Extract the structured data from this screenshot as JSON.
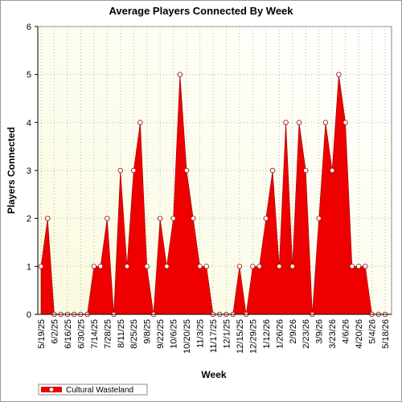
{
  "chart_data": {
    "type": "area",
    "title": "Average Players Connected By Week",
    "x_label": "Week",
    "y_label": "Players Connected",
    "categories": [
      "5/19/25",
      null,
      "6/2/25",
      null,
      "6/16/25",
      null,
      "6/30/25",
      null,
      "7/14/25",
      null,
      "7/28/25",
      null,
      "8/11/25",
      null,
      "8/25/25",
      null,
      "9/8/25",
      null,
      "9/22/25",
      null,
      "10/6/25",
      null,
      "10/20/25",
      null,
      "11/3/25",
      null,
      "11/17/25",
      null,
      "12/1/25",
      null,
      "12/15/25",
      null,
      "12/29/25",
      null,
      "1/12/26",
      null,
      "1/26/26",
      null,
      "2/9/26",
      null,
      "2/23/26",
      null,
      "3/9/26",
      null,
      "3/23/26",
      null,
      "4/6/26",
      null,
      "4/20/26",
      null,
      "5/4/26",
      null,
      "5/18/26"
    ],
    "series": [
      {
        "name": "Cultural Wasteland",
        "color": "#ee0000",
        "values": [
          1,
          2,
          0,
          0,
          0,
          0,
          0,
          0,
          1,
          1,
          2,
          0,
          3,
          1,
          3,
          4,
          1,
          0,
          2,
          1,
          2,
          5,
          3,
          2,
          1,
          1,
          0,
          0,
          0,
          0,
          1,
          0,
          1,
          1,
          2,
          3,
          1,
          4,
          1,
          4,
          3,
          0,
          2,
          4,
          3,
          5,
          4,
          1,
          1,
          1,
          0,
          0,
          0
        ]
      }
    ],
    "ylim": [
      0,
      6
    ],
    "yticks": [
      0,
      1,
      2,
      3,
      4,
      5,
      6
    ],
    "grid": true
  }
}
